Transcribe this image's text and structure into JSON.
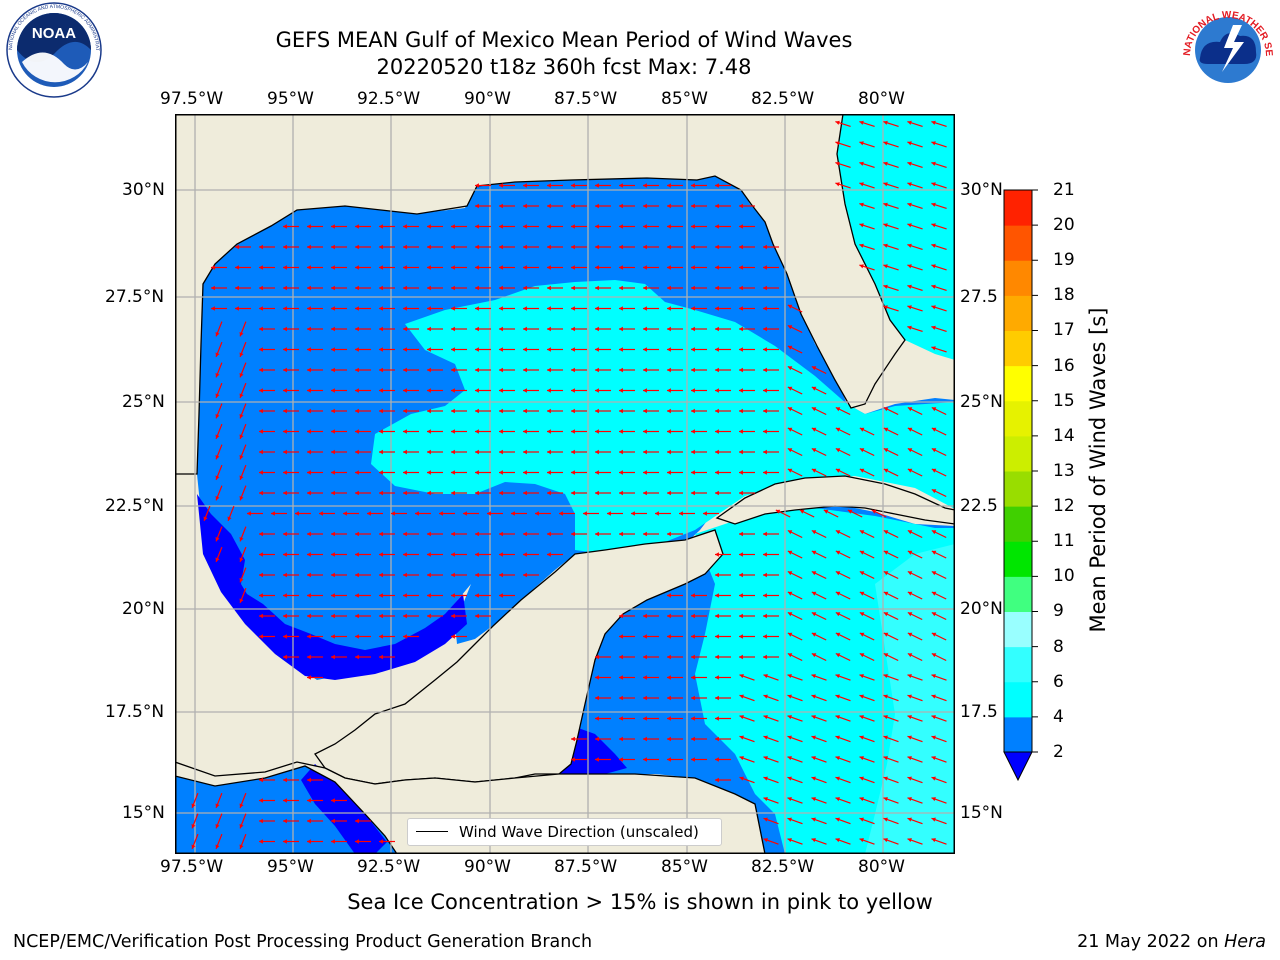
{
  "header": {
    "title_line1": "GEFS MEAN Gulf of Mexico Mean Period of Wind Waves",
    "title_line2": "20220520 t18z 360h fcst   Max: 7.48"
  },
  "logos": {
    "noaa_text": "NOAA",
    "noaa_ring_text": "NATIONAL OCEANIC AND ATMOSPHERIC ADMINISTRATION · U.S. DEPARTMENT OF COMMERCE",
    "nws_ring_text": "NATIONAL WEATHER SERVICE"
  },
  "axes": {
    "lon_labels": [
      "97.5°W",
      "95°W",
      "92.5°W",
      "90°W",
      "87.5°W",
      "85°W",
      "82.5°W",
      "80°W"
    ],
    "lat_labels_left": [
      "30°N",
      "27.5°N",
      "25°N",
      "22.5°N",
      "20°N",
      "17.5°N",
      "15°N"
    ],
    "lat_labels_right": [
      "30°N",
      "27.5",
      "25°N",
      "22.5",
      "20°N",
      "17.5",
      "15°N"
    ],
    "lon_range": [
      -98,
      -78.2
    ],
    "lat_range": [
      14,
      31.8
    ],
    "grid": true
  },
  "colorbar": {
    "title": "Mean Period of Wind Waves [s]",
    "tick_labels": [
      "2",
      "4",
      "6",
      "8",
      "9",
      "10",
      "11",
      "12",
      "13",
      "14",
      "15",
      "16",
      "17",
      "18",
      "19",
      "20",
      "21"
    ],
    "extend_below_color": "#0000ff",
    "bins": [
      {
        "from": 2,
        "to": 4,
        "color": "#0080ff"
      },
      {
        "from": 4,
        "to": 6,
        "color": "#00ffff"
      },
      {
        "from": 6,
        "to": 8,
        "color": "#33ffff"
      },
      {
        "from": 8,
        "to": 9,
        "color": "#99ffff"
      },
      {
        "from": 9,
        "to": 10,
        "color": "#40ff80"
      },
      {
        "from": 10,
        "to": 11,
        "color": "#00e600"
      },
      {
        "from": 11,
        "to": 12,
        "color": "#40d000"
      },
      {
        "from": 12,
        "to": 13,
        "color": "#99dd00"
      },
      {
        "from": 13,
        "to": 14,
        "color": "#ccee00"
      },
      {
        "from": 14,
        "to": 15,
        "color": "#e6f200"
      },
      {
        "from": 15,
        "to": 16,
        "color": "#ffff00"
      },
      {
        "from": 16,
        "to": 17,
        "color": "#ffcc00"
      },
      {
        "from": 17,
        "to": 18,
        "color": "#ffaa00"
      },
      {
        "from": 18,
        "to": 19,
        "color": "#ff8800"
      },
      {
        "from": 19,
        "to": 20,
        "color": "#ff5500"
      },
      {
        "from": 20,
        "to": 21,
        "color": "#ff2200"
      }
    ]
  },
  "map_colors": {
    "land": "#efecdb",
    "coast": "#000000",
    "grid": "#b0b0b0",
    "arrow": "#ff0000",
    "period_lt2": "#0000ff",
    "period_2_4": "#0080ff",
    "period_4_6": "#00ffff",
    "period_6_8": "#33ffff"
  },
  "legend": {
    "label": "Wind Wave Direction (unscaled)"
  },
  "notes": {
    "sea_ice": "Sea Ice Concentration > 15% is shown in pink to yellow",
    "footer_left": "NCEP/EMC/Verification Post Processing Product Generation Branch",
    "footer_date": "21 May 2022 on",
    "footer_machine": "Hera"
  }
}
